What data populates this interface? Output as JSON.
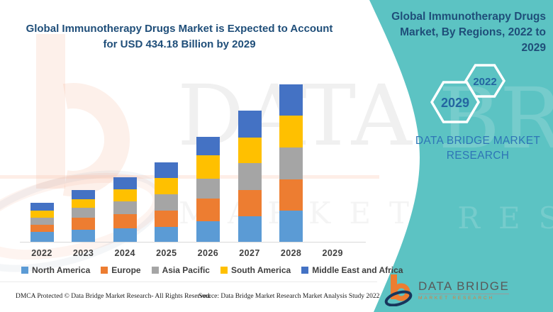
{
  "main": {
    "title_line1": "Global Immunotherapy Drugs Market is Expected to Account",
    "title_line2": "for USD 434.18 Billion by 2029"
  },
  "chart_data": {
    "type": "bar",
    "stacked": true,
    "title": "Global Immunotherapy Drugs Market is Expected to Account for USD 434.18 Billion by 2029",
    "xlabel": "",
    "ylabel": "",
    "value_units": "relative-pixel-height (no y-axis shown in figure)",
    "grid": false,
    "legend_position": "bottom",
    "categories": [
      "2022",
      "2023",
      "2024",
      "2025",
      "2026",
      "2027",
      "2028",
      "2029"
    ],
    "series": [
      {
        "name": "North America",
        "color": "#5B9BD5",
        "values": [
          15,
          18,
          20,
          22,
          30,
          37,
          45,
          0
        ]
      },
      {
        "name": "Europe",
        "color": "#ED7D31",
        "values": [
          10,
          17,
          20,
          23,
          32,
          37,
          44,
          0
        ]
      },
      {
        "name": "Asia Pacific",
        "color": "#A5A5A5",
        "values": [
          10,
          14,
          18,
          23,
          28,
          38,
          45,
          0
        ]
      },
      {
        "name": "South America",
        "color": "#FFC000",
        "values": [
          10,
          12,
          17,
          23,
          33,
          36,
          45,
          0
        ]
      },
      {
        "name": "Middle East and Africa",
        "color": "#4472C4",
        "values": [
          11,
          13,
          17,
          22,
          26,
          38,
          44,
          0
        ]
      }
    ]
  },
  "sidebar": {
    "bg_color": "#5CC3C3",
    "title": "Global Immunotherapy Drugs Market, By Regions, 2022 to 2029",
    "hex_small_label": "2022",
    "hex_large_label": "2029",
    "brand_text": "DATA BRIDGE MARKET RESEARCH",
    "title_color": "#1F4E79",
    "brand_color": "#2E75B6"
  },
  "logo": {
    "name_top": "DATA BRIDGE",
    "name_bottom": "MARKET RESEARCH"
  },
  "footer": {
    "left": "DMCA Protected © Data Bridge Market Research- All Rights Reserved.",
    "right": "Source: Data Bridge Market Research Market Analysis Study 2022"
  },
  "watermark": {
    "big_text": "DATA BRIDGE",
    "spaced_text": "MARKET RESEARCH"
  }
}
